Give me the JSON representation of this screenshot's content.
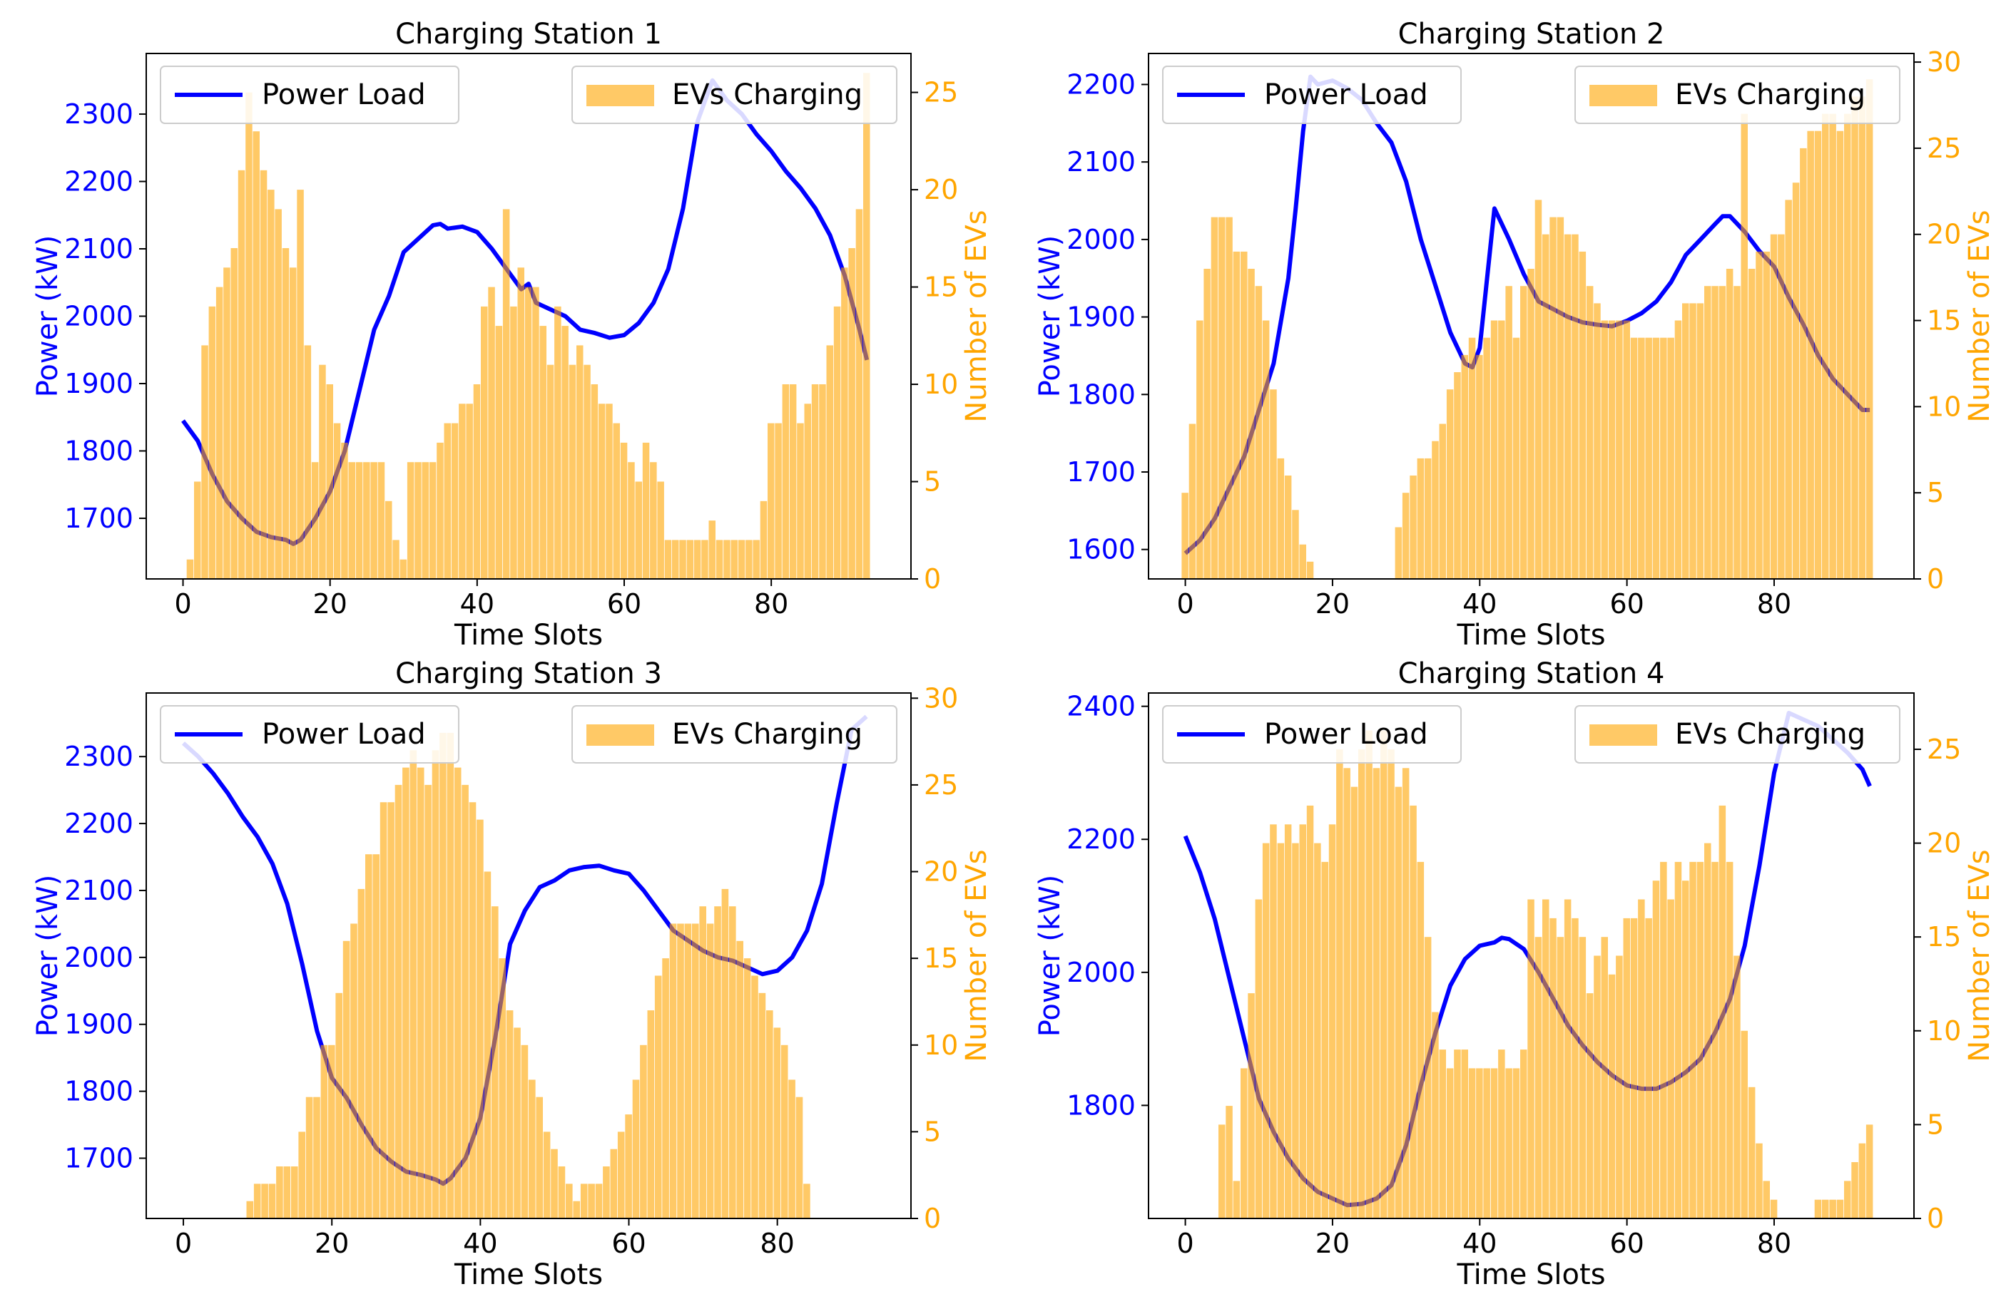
{
  "colors": {
    "power": "#0000ff",
    "evs": "#ffa500",
    "overlap": "#6a4a86",
    "axis": "#000000",
    "legend_border": "#cccccc"
  },
  "legend": {
    "power_label": "Power Load",
    "evs_label": "EVs Charging",
    "power_position": "upper left",
    "evs_position": "upper right"
  },
  "chart_data": [
    {
      "type": "bar+line",
      "title": "Charging Station 1",
      "xlabel": "Time Slots",
      "ylabel_left": "Power (kW)",
      "ylabel_right": "Number of EVs",
      "xlim": [
        -5,
        99
      ],
      "ylim_left": [
        1610,
        2390
      ],
      "ylim_right": [
        0,
        27
      ],
      "x_ticks": [
        0,
        20,
        40,
        60,
        80
      ],
      "y_left_ticks": [
        1700,
        1800,
        1900,
        2000,
        2100,
        2200,
        2300
      ],
      "y_right_ticks": [
        0,
        5,
        10,
        15,
        20,
        25
      ],
      "x_tick_labels": [
        "0",
        "20",
        "40",
        "60",
        "80"
      ],
      "y_left_tick_labels": [
        "1700",
        "1800",
        "1900",
        "2000",
        "2100",
        "2200",
        "2300"
      ],
      "y_right_tick_labels": [
        "0",
        "5",
        "10",
        "15",
        "20",
        "25"
      ],
      "power_x": [
        0,
        2,
        4,
        6,
        8,
        10,
        12,
        14,
        15,
        16,
        18,
        20,
        22,
        24,
        26,
        28,
        30,
        32,
        34,
        35,
        36,
        38,
        40,
        42,
        44,
        46,
        47,
        48,
        50,
        52,
        54,
        56,
        58,
        60,
        62,
        64,
        66,
        68,
        70,
        72,
        74,
        76,
        78,
        80,
        82,
        84,
        86,
        88,
        90,
        92,
        93
      ],
      "power_y": [
        1845,
        1815,
        1765,
        1725,
        1700,
        1680,
        1672,
        1668,
        1662,
        1668,
        1700,
        1740,
        1800,
        1890,
        1980,
        2030,
        2095,
        2115,
        2135,
        2137,
        2130,
        2133,
        2125,
        2100,
        2070,
        2040,
        2048,
        2020,
        2010,
        2000,
        1980,
        1975,
        1968,
        1972,
        1990,
        2020,
        2070,
        2160,
        2290,
        2350,
        2320,
        2300,
        2270,
        2245,
        2215,
        2190,
        2160,
        2120,
        2060,
        1980,
        1935
      ],
      "evs": [
        0,
        1,
        5,
        12,
        14,
        15,
        16,
        17,
        21,
        25,
        23,
        21,
        20,
        19,
        17,
        16,
        20,
        12,
        6,
        11,
        10,
        8,
        7,
        6,
        6,
        6,
        6,
        6,
        4,
        2,
        1,
        6,
        6,
        6,
        6,
        7,
        8,
        8,
        9,
        9,
        10,
        14,
        15,
        13,
        19,
        14,
        16,
        15,
        15,
        13,
        11,
        14,
        13,
        11,
        12,
        11,
        10,
        9,
        9,
        8,
        7,
        6,
        5,
        7,
        6,
        5,
        2,
        2,
        2,
        2,
        2,
        2,
        3,
        2,
        2,
        2,
        2,
        2,
        2,
        4,
        8,
        8,
        10,
        10,
        8,
        9,
        10,
        10,
        12,
        14,
        16,
        17,
        19,
        26
      ]
    },
    {
      "type": "bar+line",
      "title": "Charging Station 2",
      "xlabel": "Time Slots",
      "ylabel_left": "Power (kW)",
      "ylabel_right": "Number of EVs",
      "xlim": [
        -5,
        99
      ],
      "ylim_left": [
        1562,
        2240
      ],
      "ylim_right": [
        0,
        30.5
      ],
      "x_ticks": [
        0,
        20,
        40,
        60,
        80
      ],
      "y_left_ticks": [
        1600,
        1700,
        1800,
        1900,
        2000,
        2100,
        2200
      ],
      "y_right_ticks": [
        0,
        5,
        10,
        15,
        20,
        25,
        30
      ],
      "x_tick_labels": [
        "0",
        "20",
        "40",
        "60",
        "80"
      ],
      "y_left_tick_labels": [
        "1600",
        "1700",
        "1800",
        "1900",
        "2000",
        "2100",
        "2200"
      ],
      "y_right_tick_labels": [
        "0",
        "5",
        "10",
        "15",
        "20",
        "25",
        "30"
      ],
      "power_x": [
        0,
        2,
        4,
        6,
        8,
        10,
        12,
        14,
        15,
        16,
        17,
        18,
        20,
        22,
        24,
        26,
        28,
        30,
        32,
        34,
        36,
        38,
        39,
        40,
        41,
        42,
        44,
        46,
        48,
        50,
        52,
        54,
        56,
        58,
        60,
        62,
        64,
        66,
        68,
        70,
        72,
        73,
        74,
        76,
        78,
        80,
        82,
        84,
        86,
        88,
        90,
        92,
        93
      ],
      "power_y": [
        1595,
        1612,
        1640,
        1680,
        1720,
        1780,
        1840,
        1950,
        2040,
        2140,
        2210,
        2200,
        2205,
        2195,
        2180,
        2150,
        2125,
        2075,
        2000,
        1940,
        1880,
        1840,
        1835,
        1860,
        1950,
        2040,
        2000,
        1955,
        1920,
        1910,
        1900,
        1893,
        1890,
        1888,
        1895,
        1905,
        1920,
        1945,
        1980,
        2000,
        2020,
        2030,
        2030,
        2010,
        1985,
        1965,
        1925,
        1890,
        1850,
        1820,
        1800,
        1780,
        1780
      ],
      "evs": [
        5,
        9,
        15,
        18,
        21,
        21,
        21,
        19,
        19,
        18,
        17,
        15,
        11,
        7,
        6,
        4,
        2,
        1,
        0,
        0,
        0,
        0,
        0,
        0,
        0,
        0,
        0,
        0,
        0,
        3,
        5,
        6,
        7,
        7,
        8,
        9,
        11,
        12,
        13,
        14,
        13,
        14,
        15,
        15,
        17,
        14,
        17,
        18,
        22,
        20,
        21,
        21,
        20,
        20,
        19,
        17,
        16,
        15,
        15,
        15,
        15,
        14,
        14,
        14,
        14,
        14,
        14,
        15,
        16,
        16,
        16,
        17,
        17,
        17,
        18,
        17,
        27,
        18,
        19,
        19,
        20,
        20,
        22,
        23,
        25,
        26,
        26,
        27,
        27,
        26,
        27,
        28,
        28,
        29
      ]
    },
    {
      "type": "bar+line",
      "title": "Charging Station 3",
      "xlabel": "Time Slots",
      "ylabel_left": "Power (kW)",
      "ylabel_right": "Number of EVs",
      "xlim": [
        -5,
        98
      ],
      "ylim_left": [
        1610,
        2395
      ],
      "ylim_right": [
        0,
        30.3
      ],
      "x_ticks": [
        0,
        20,
        40,
        60,
        80
      ],
      "y_left_ticks": [
        1700,
        1800,
        1900,
        2000,
        2100,
        2200,
        2300
      ],
      "y_right_ticks": [
        0,
        5,
        10,
        15,
        20,
        25,
        30
      ],
      "x_tick_labels": [
        "0",
        "20",
        "40",
        "60",
        "80"
      ],
      "y_left_tick_labels": [
        "1700",
        "1800",
        "1900",
        "2000",
        "2100",
        "2200",
        "2300"
      ],
      "y_right_tick_labels": [
        "0",
        "5",
        "10",
        "15",
        "20",
        "25",
        "30"
      ],
      "power_x": [
        0,
        2,
        4,
        6,
        8,
        10,
        12,
        14,
        16,
        18,
        20,
        22,
        24,
        26,
        28,
        30,
        32,
        34,
        35,
        36,
        38,
        40,
        42,
        44,
        46,
        48,
        50,
        52,
        54,
        56,
        58,
        60,
        62,
        64,
        66,
        68,
        70,
        72,
        74,
        76,
        78,
        80,
        82,
        84,
        86,
        88,
        90,
        92
      ],
      "power_y": [
        2320,
        2300,
        2275,
        2245,
        2210,
        2180,
        2140,
        2080,
        1990,
        1890,
        1820,
        1790,
        1750,
        1715,
        1695,
        1680,
        1675,
        1668,
        1662,
        1670,
        1700,
        1760,
        1880,
        2020,
        2070,
        2105,
        2115,
        2130,
        2135,
        2137,
        2130,
        2125,
        2100,
        2070,
        2040,
        2025,
        2010,
        2000,
        1995,
        1985,
        1975,
        1980,
        2000,
        2040,
        2110,
        2230,
        2340,
        2360
      ],
      "evs": [
        0,
        0,
        0,
        0,
        0,
        0,
        0,
        0,
        0,
        1,
        2,
        2,
        2,
        3,
        3,
        3,
        5,
        7,
        7,
        10,
        10,
        13,
        16,
        17,
        19,
        21,
        21,
        24,
        24,
        25,
        26,
        27,
        26,
        25,
        27,
        28,
        28,
        26,
        25,
        24,
        23,
        20,
        18,
        15,
        12,
        11,
        10,
        8,
        7,
        5,
        4,
        3,
        2,
        1,
        2,
        2,
        2,
        3,
        4,
        5,
        6,
        8,
        10,
        12,
        14,
        15,
        17,
        17,
        17,
        17,
        18,
        17,
        18,
        19,
        18,
        16,
        15,
        14,
        13,
        12,
        11,
        10,
        8,
        7,
        2,
        0,
        0,
        0,
        0,
        0,
        0,
        0,
        0,
        0
      ]
    },
    {
      "type": "bar+line",
      "title": "Charging Station 4",
      "xlabel": "Time Slots",
      "ylabel_left": "Power (kW)",
      "ylabel_right": "Number of EVs",
      "xlim": [
        -5,
        99
      ],
      "ylim_left": [
        1630,
        2420
      ],
      "ylim_right": [
        0,
        28
      ],
      "x_ticks": [
        0,
        20,
        40,
        60,
        80
      ],
      "y_left_ticks": [
        1800,
        2000,
        2200,
        2400
      ],
      "y_right_ticks": [
        0,
        5,
        10,
        15,
        20,
        25
      ],
      "x_tick_labels": [
        "0",
        "20",
        "40",
        "60",
        "80"
      ],
      "y_left_tick_labels": [
        "1800",
        "2000",
        "2200",
        "2400"
      ],
      "y_right_tick_labels": [
        "0",
        "5",
        "10",
        "15",
        "20",
        "25"
      ],
      "power_x": [
        0,
        2,
        4,
        6,
        8,
        10,
        12,
        14,
        16,
        18,
        20,
        22,
        24,
        26,
        28,
        30,
        32,
        34,
        36,
        38,
        40,
        42,
        43,
        44,
        46,
        48,
        50,
        52,
        54,
        56,
        58,
        60,
        62,
        64,
        66,
        68,
        70,
        72,
        74,
        76,
        78,
        80,
        82,
        84,
        86,
        88,
        90,
        92,
        93
      ],
      "power_y": [
        2205,
        2150,
        2080,
        1990,
        1900,
        1810,
        1760,
        1720,
        1690,
        1670,
        1660,
        1650,
        1652,
        1660,
        1680,
        1740,
        1830,
        1910,
        1980,
        2020,
        2040,
        2045,
        2052,
        2050,
        2035,
        2000,
        1960,
        1920,
        1890,
        1865,
        1845,
        1830,
        1825,
        1825,
        1835,
        1850,
        1870,
        1910,
        1960,
        2040,
        2160,
        2300,
        2390,
        2380,
        2370,
        2350,
        2330,
        2305,
        2280
      ],
      "evs": [
        0,
        0,
        0,
        0,
        0,
        5,
        6,
        2,
        8,
        12,
        17,
        20,
        21,
        20,
        21,
        20,
        21,
        22,
        20,
        19,
        21,
        25,
        24,
        23,
        25,
        26,
        24,
        26,
        25,
        23,
        24,
        22,
        19,
        15,
        11,
        9,
        8,
        9,
        9,
        8,
        8,
        8,
        8,
        9,
        8,
        8,
        9,
        17,
        15,
        17,
        16,
        15,
        17,
        16,
        15,
        12,
        14,
        15,
        13,
        14,
        16,
        16,
        17,
        16,
        18,
        19,
        17,
        19,
        18,
        19,
        19,
        20,
        19,
        22,
        19,
        14,
        10,
        7,
        4,
        2,
        1,
        0,
        0,
        0,
        0,
        0,
        1,
        1,
        1,
        1,
        2,
        3,
        4,
        5
      ]
    }
  ]
}
